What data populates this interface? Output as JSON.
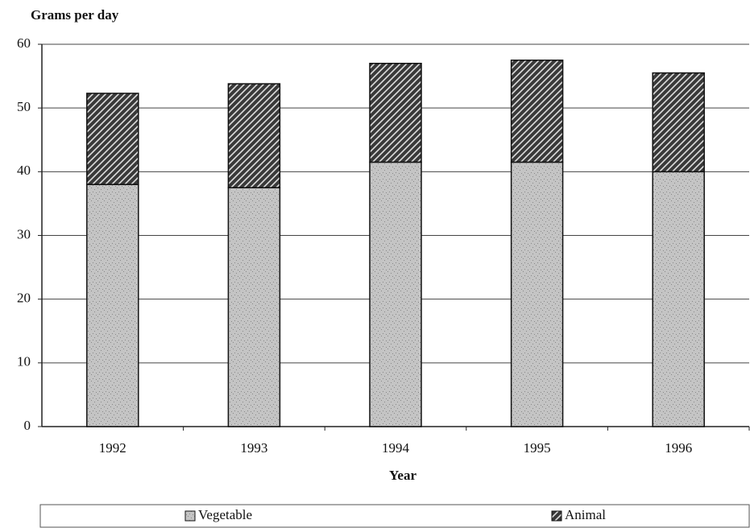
{
  "chart_data": {
    "type": "stacked-bar",
    "title": "Grams per day",
    "x_label": "Year",
    "categories": [
      "1992",
      "1993",
      "1994",
      "1995",
      "1996"
    ],
    "series": [
      {
        "name": "Vegetable",
        "color": "#c4c4c4",
        "values": [
          38,
          37.5,
          41.5,
          41.5,
          40
        ]
      },
      {
        "name": "Animal",
        "color": "#3a3a3a",
        "values": [
          14.3,
          16.3,
          15.5,
          16,
          15.5
        ]
      }
    ],
    "ylim": [
      0,
      60
    ],
    "yticks": [
      0,
      10,
      20,
      30,
      40,
      50,
      60
    ],
    "grid": true,
    "legend": "bottom"
  }
}
